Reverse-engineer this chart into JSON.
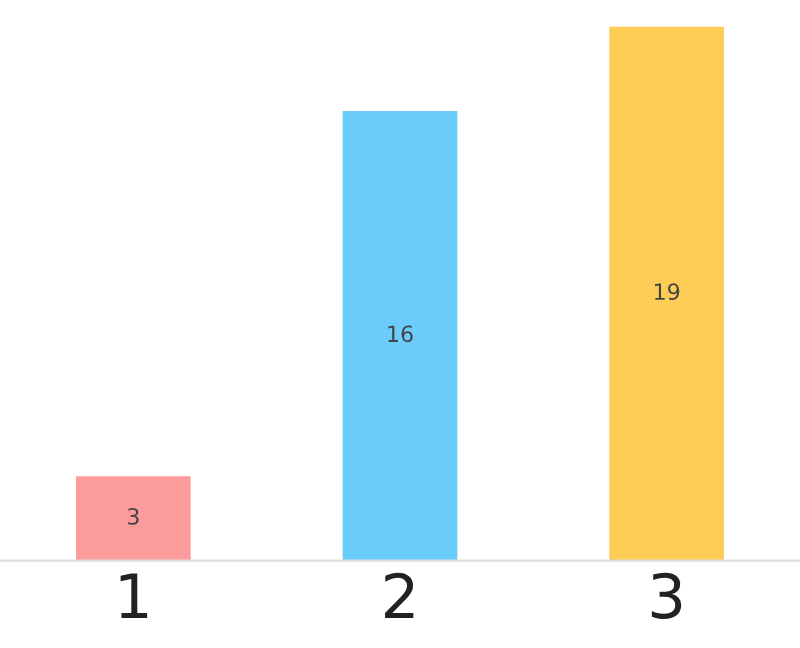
{
  "chart_data": {
    "type": "bar",
    "categories": [
      "1",
      "2",
      "3"
    ],
    "values": [
      3,
      16,
      19
    ],
    "colors": [
      "#fb9b9c",
      "#6ccdfc",
      "#fdcd55"
    ],
    "data_labels": true,
    "grid": false
  }
}
